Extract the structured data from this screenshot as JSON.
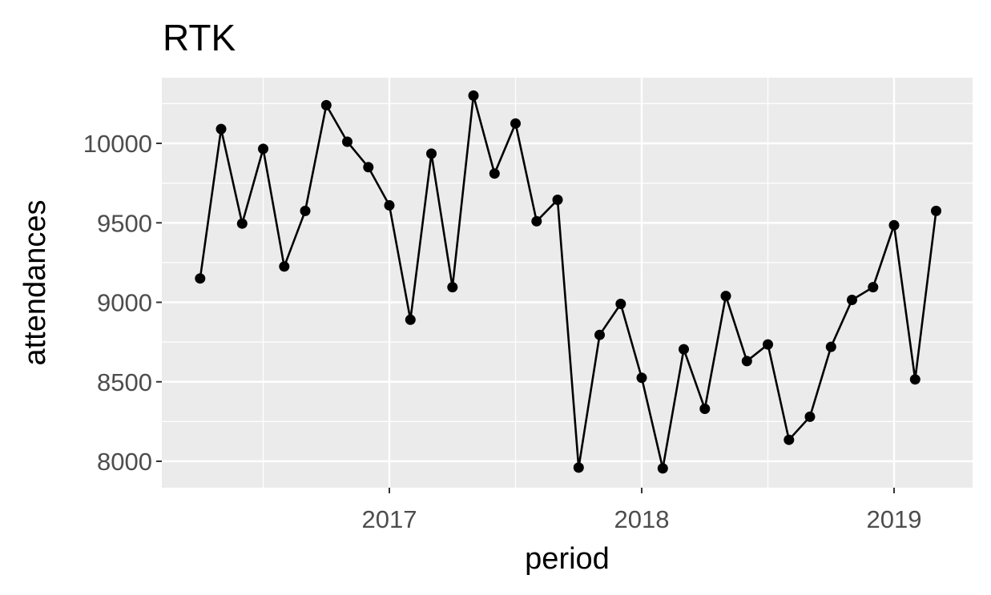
{
  "chart_data": {
    "type": "line",
    "title": "RTK",
    "xlabel": "period",
    "ylabel": "attendances",
    "x_ticks": [
      "2017",
      "2018",
      "2019"
    ],
    "y_ticks": [
      "8000",
      "8500",
      "9000",
      "9500",
      "10000"
    ],
    "ylim": [
      7950,
      10300
    ],
    "grid": true,
    "series": [
      {
        "x": [
          "2016-04",
          "2016-05",
          "2016-06",
          "2016-07",
          "2016-08",
          "2016-09",
          "2016-10",
          "2016-11",
          "2016-12",
          "2017-01",
          "2017-02",
          "2017-03",
          "2017-04",
          "2017-05",
          "2017-06",
          "2017-07",
          "2017-08",
          "2017-09",
          "2017-10",
          "2017-11",
          "2017-12",
          "2018-01",
          "2018-02",
          "2018-03",
          "2018-04",
          "2018-05",
          "2018-06",
          "2018-07",
          "2018-08",
          "2018-09",
          "2018-10",
          "2018-11",
          "2018-12",
          "2019-01",
          "2019-02",
          "2019-03"
        ],
        "values": [
          9150,
          10090,
          9495,
          9965,
          9225,
          9575,
          10240,
          10010,
          9850,
          9610,
          8890,
          9935,
          9095,
          10300,
          9810,
          10125,
          9510,
          9645,
          7960,
          8795,
          8990,
          8525,
          7955,
          8705,
          8330,
          9040,
          8630,
          8735,
          8135,
          8280,
          8720,
          9015,
          9095,
          9485,
          8515,
          9575
        ]
      }
    ]
  },
  "colors": {
    "panel": "#ebebeb",
    "grid": "#ffffff",
    "line": "#000000",
    "tick_label": "#4d4d4d"
  }
}
